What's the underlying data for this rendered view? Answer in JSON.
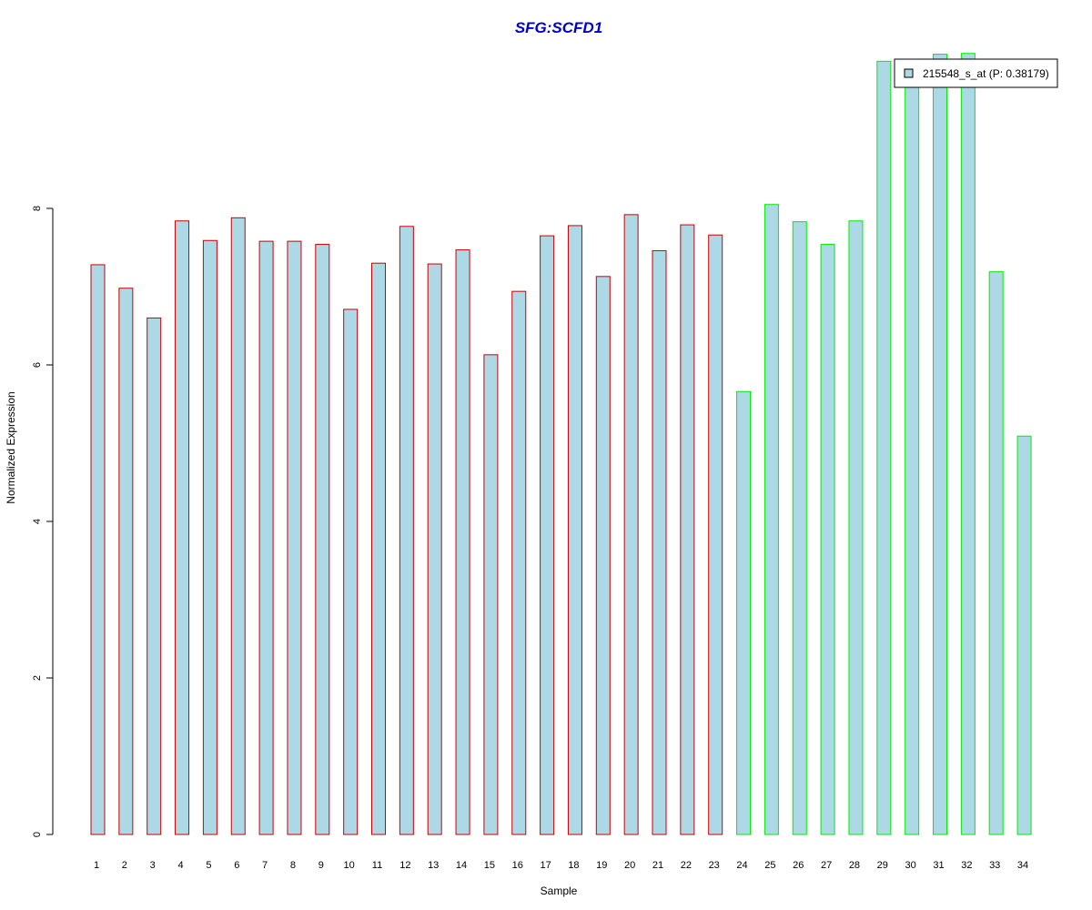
{
  "chart_data": {
    "type": "bar",
    "title": "SFG:SCFD1",
    "xlabel": "Sample",
    "ylabel": "Normalized Expression",
    "ylim": [
      0,
      10
    ],
    "yticks": [
      0,
      2,
      4,
      6,
      8
    ],
    "categories": [
      "1",
      "2",
      "3",
      "4",
      "5",
      "6",
      "7",
      "8",
      "9",
      "10",
      "11",
      "12",
      "13",
      "14",
      "15",
      "16",
      "17",
      "18",
      "19",
      "20",
      "21",
      "22",
      "23",
      "24",
      "25",
      "26",
      "27",
      "28",
      "29",
      "30",
      "31",
      "32",
      "33",
      "34"
    ],
    "series": [
      {
        "name": "215548_s_at (P: 0.38179)",
        "values": [
          7.28,
          6.98,
          6.6,
          7.84,
          7.59,
          7.88,
          7.58,
          7.58,
          7.54,
          6.71,
          7.3,
          7.77,
          7.29,
          7.47,
          6.13,
          6.94,
          7.65,
          7.78,
          7.13,
          7.92,
          7.46,
          7.79,
          7.66,
          5.66,
          8.05,
          7.83,
          7.54,
          7.84,
          9.88,
          9.75,
          9.97,
          9.98,
          7.19,
          5.09
        ]
      }
    ],
    "groups": [
      {
        "range": [
          1,
          23
        ],
        "border_color": "#cc0000"
      },
      {
        "range": [
          24,
          34
        ],
        "border_color": "#00ee00"
      }
    ],
    "bar_fill": "#add8e6",
    "title_color": "#0000cc",
    "grid": false,
    "legend_position": "top-right"
  }
}
